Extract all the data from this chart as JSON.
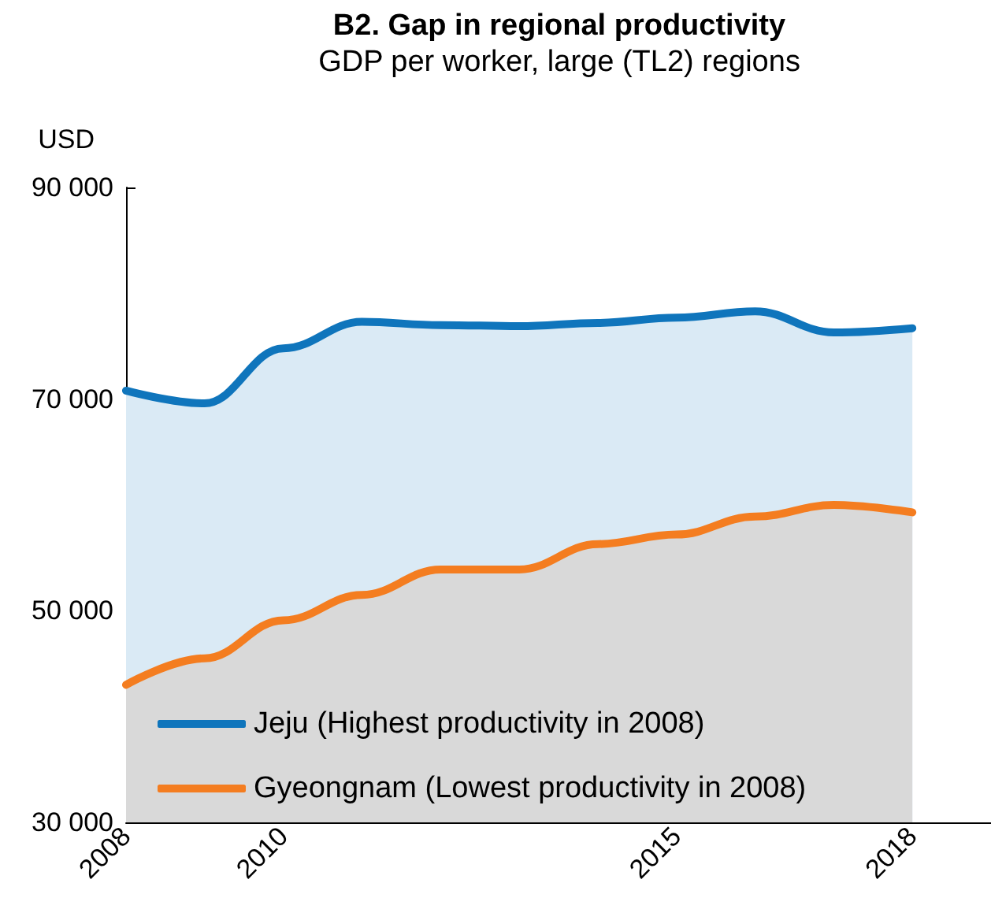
{
  "chart_data": {
    "type": "area",
    "title": "B2. Gap in regional productivity",
    "subtitle": "GDP per worker, large (TL2) regions",
    "ylabel": "USD",
    "x": [
      2008,
      2009,
      2010,
      2011,
      2012,
      2013,
      2014,
      2015,
      2016,
      2017,
      2018
    ],
    "series": [
      {
        "name": "Jeju (Highest productivity in 2008)",
        "color": "#0f75bc",
        "values": [
          70800,
          69600,
          74800,
          77300,
          77000,
          76900,
          77200,
          77700,
          78300,
          76300,
          76700
        ]
      },
      {
        "name": "Gyeongnam (Lowest productivity in 2008)",
        "color": "#f47d20",
        "values": [
          43000,
          45500,
          49100,
          51500,
          53900,
          53900,
          56300,
          57200,
          58900,
          60000,
          59300
        ]
      }
    ],
    "xlim": [
      2008,
      2019
    ],
    "xticks": [
      2008,
      2010,
      2015,
      2018
    ],
    "ylim": [
      30000,
      90000
    ],
    "yticks": [
      {
        "value": 30000,
        "label": "30 000"
      },
      {
        "value": 50000,
        "label": "50 000"
      },
      {
        "value": 70000,
        "label": "70 000"
      },
      {
        "value": 90000,
        "label": "90 000"
      }
    ],
    "grid": false,
    "legend": "bottom left",
    "marker": "none",
    "line_style": "solid"
  }
}
